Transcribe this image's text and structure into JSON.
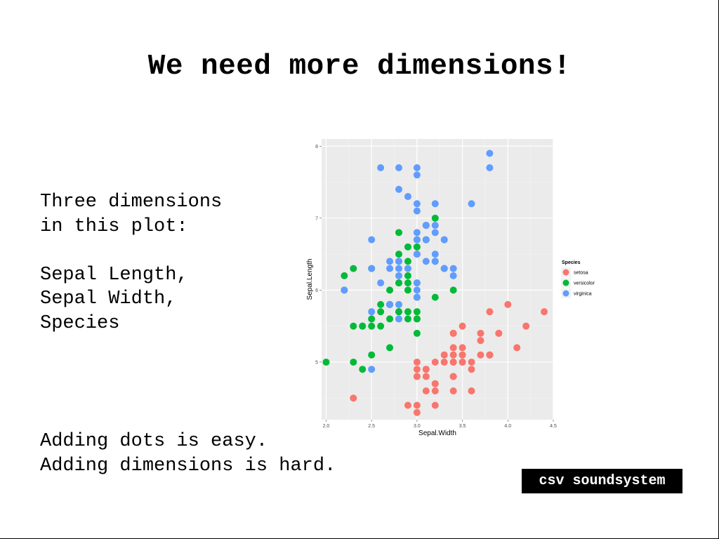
{
  "slide": {
    "title": "We need more dimensions!",
    "left_text": "Three dimensions\nin this plot:\n\nSepal Length,\nSepal Width,\nSpecies",
    "bottom_text": "Adding dots is easy.\nAdding dimensions is hard.",
    "badge": "csv soundsystem"
  },
  "chart_data": {
    "type": "scatter",
    "xlabel": "Sepal.Width",
    "ylabel": "Sepal.Length",
    "xlim": [
      1.95,
      4.5
    ],
    "ylim": [
      4.2,
      8.1
    ],
    "x_ticks": [
      "2.0",
      "2.5",
      "3.0",
      "3.5",
      "4.0",
      "4.5"
    ],
    "y_ticks": [
      "5",
      "6",
      "7",
      "8"
    ],
    "grid": true,
    "legend": {
      "title": "Species",
      "position": "right"
    },
    "series": [
      {
        "name": "setosa",
        "color": "#F8766D",
        "points": [
          [
            3.5,
            5.1
          ],
          [
            3.0,
            4.9
          ],
          [
            3.2,
            4.7
          ],
          [
            3.1,
            4.6
          ],
          [
            3.6,
            5.0
          ],
          [
            3.9,
            5.4
          ],
          [
            3.4,
            4.6
          ],
          [
            3.4,
            5.0
          ],
          [
            2.9,
            4.4
          ],
          [
            3.1,
            4.9
          ],
          [
            3.7,
            5.4
          ],
          [
            3.4,
            4.8
          ],
          [
            3.0,
            4.8
          ],
          [
            3.0,
            4.3
          ],
          [
            4.0,
            5.8
          ],
          [
            4.4,
            5.7
          ],
          [
            3.9,
            5.4
          ],
          [
            3.5,
            5.1
          ],
          [
            3.8,
            5.7
          ],
          [
            3.8,
            5.1
          ],
          [
            3.4,
            5.4
          ],
          [
            3.7,
            5.1
          ],
          [
            3.6,
            4.6
          ],
          [
            3.3,
            5.1
          ],
          [
            3.4,
            4.8
          ],
          [
            3.0,
            5.0
          ],
          [
            3.4,
            5.0
          ],
          [
            3.5,
            5.2
          ],
          [
            3.4,
            5.2
          ],
          [
            3.2,
            4.7
          ],
          [
            3.1,
            4.8
          ],
          [
            3.4,
            5.4
          ],
          [
            4.1,
            5.2
          ],
          [
            4.2,
            5.5
          ],
          [
            3.1,
            4.9
          ],
          [
            3.2,
            5.0
          ],
          [
            3.5,
            5.5
          ],
          [
            3.6,
            4.9
          ],
          [
            3.0,
            4.4
          ],
          [
            3.4,
            5.1
          ],
          [
            3.5,
            5.0
          ],
          [
            2.3,
            4.5
          ],
          [
            3.2,
            4.4
          ],
          [
            3.5,
            5.0
          ],
          [
            3.8,
            5.1
          ],
          [
            3.0,
            4.8
          ],
          [
            3.8,
            5.1
          ],
          [
            3.2,
            4.6
          ],
          [
            3.7,
            5.3
          ],
          [
            3.3,
            5.0
          ]
        ]
      },
      {
        "name": "versicolor",
        "color": "#00BA38",
        "points": [
          [
            3.2,
            7.0
          ],
          [
            3.2,
            6.4
          ],
          [
            3.1,
            6.9
          ],
          [
            2.3,
            5.5
          ],
          [
            2.8,
            6.5
          ],
          [
            2.8,
            5.7
          ],
          [
            3.3,
            6.3
          ],
          [
            2.4,
            4.9
          ],
          [
            2.9,
            6.6
          ],
          [
            2.7,
            5.2
          ],
          [
            2.0,
            5.0
          ],
          [
            3.0,
            5.9
          ],
          [
            2.2,
            6.0
          ],
          [
            2.9,
            6.1
          ],
          [
            2.9,
            5.6
          ],
          [
            3.1,
            6.7
          ],
          [
            3.0,
            5.6
          ],
          [
            2.7,
            5.8
          ],
          [
            2.2,
            6.2
          ],
          [
            2.5,
            5.6
          ],
          [
            3.2,
            5.9
          ],
          [
            2.8,
            6.1
          ],
          [
            2.5,
            6.3
          ],
          [
            2.8,
            6.1
          ],
          [
            2.9,
            6.4
          ],
          [
            3.0,
            6.6
          ],
          [
            2.8,
            6.8
          ],
          [
            3.0,
            6.7
          ],
          [
            2.9,
            6.0
          ],
          [
            2.6,
            5.7
          ],
          [
            2.4,
            5.5
          ],
          [
            2.4,
            5.5
          ],
          [
            2.7,
            5.8
          ],
          [
            2.7,
            6.0
          ],
          [
            3.0,
            5.4
          ],
          [
            3.4,
            6.0
          ],
          [
            3.1,
            6.7
          ],
          [
            2.3,
            6.3
          ],
          [
            3.0,
            5.6
          ],
          [
            2.5,
            5.5
          ],
          [
            2.6,
            5.5
          ],
          [
            3.0,
            6.1
          ],
          [
            2.6,
            5.8
          ],
          [
            2.3,
            5.0
          ],
          [
            2.7,
            5.6
          ],
          [
            3.0,
            5.7
          ],
          [
            2.9,
            5.7
          ],
          [
            2.9,
            6.2
          ],
          [
            2.5,
            5.1
          ],
          [
            2.8,
            5.7
          ]
        ]
      },
      {
        "name": "virginica",
        "color": "#619CFF",
        "points": [
          [
            3.3,
            6.3
          ],
          [
            2.7,
            5.8
          ],
          [
            3.0,
            7.1
          ],
          [
            2.9,
            6.3
          ],
          [
            3.0,
            6.5
          ],
          [
            3.0,
            7.6
          ],
          [
            2.5,
            4.9
          ],
          [
            2.9,
            7.3
          ],
          [
            2.5,
            6.7
          ],
          [
            3.6,
            7.2
          ],
          [
            3.2,
            6.5
          ],
          [
            2.7,
            6.4
          ],
          [
            3.0,
            6.8
          ],
          [
            2.5,
            5.7
          ],
          [
            2.8,
            5.8
          ],
          [
            3.2,
            6.4
          ],
          [
            3.0,
            6.5
          ],
          [
            3.8,
            7.7
          ],
          [
            2.6,
            7.7
          ],
          [
            2.2,
            6.0
          ],
          [
            3.2,
            6.9
          ],
          [
            2.8,
            5.6
          ],
          [
            2.8,
            7.7
          ],
          [
            2.7,
            6.3
          ],
          [
            3.3,
            6.7
          ],
          [
            3.2,
            7.2
          ],
          [
            2.8,
            6.2
          ],
          [
            3.0,
            6.1
          ],
          [
            2.8,
            6.4
          ],
          [
            3.0,
            7.2
          ],
          [
            2.8,
            7.4
          ],
          [
            3.8,
            7.9
          ],
          [
            2.8,
            6.4
          ],
          [
            2.8,
            6.3
          ],
          [
            2.6,
            6.1
          ],
          [
            3.0,
            7.7
          ],
          [
            3.4,
            6.3
          ],
          [
            3.1,
            6.4
          ],
          [
            3.0,
            6.0
          ],
          [
            3.1,
            6.9
          ],
          [
            3.1,
            6.7
          ],
          [
            3.1,
            6.9
          ],
          [
            2.7,
            5.8
          ],
          [
            3.2,
            6.8
          ],
          [
            3.3,
            6.7
          ],
          [
            3.0,
            6.7
          ],
          [
            2.5,
            6.3
          ],
          [
            3.0,
            6.5
          ],
          [
            3.4,
            6.2
          ],
          [
            3.0,
            5.9
          ]
        ]
      }
    ]
  }
}
